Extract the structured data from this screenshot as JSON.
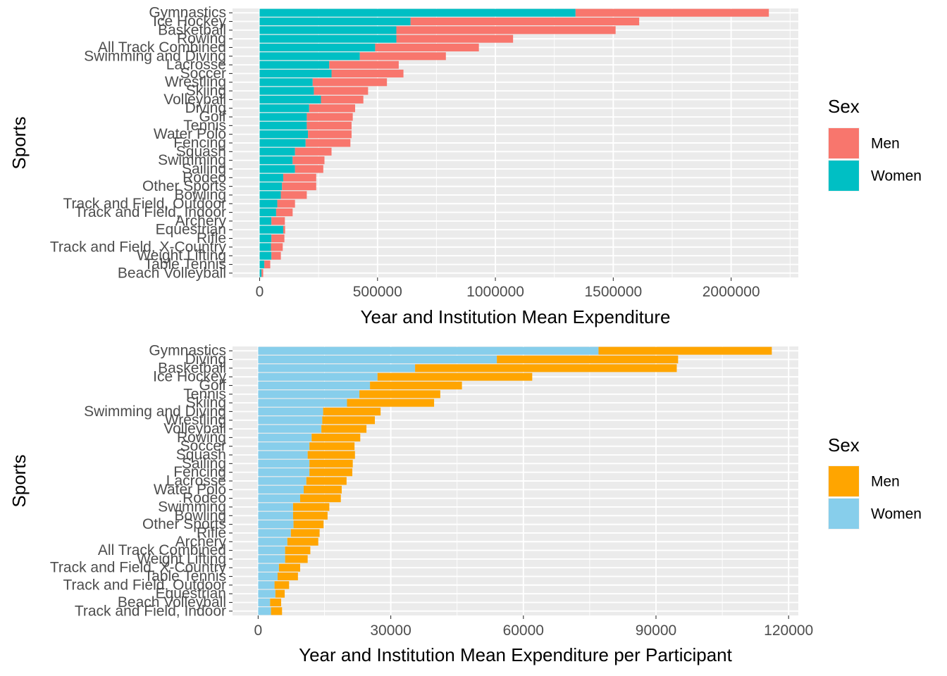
{
  "charts": [
    {
      "chart_data": {
        "type": "bar",
        "orientation": "horizontal",
        "stacked": true,
        "xlabel": "Year and Institution Mean Expenditure",
        "ylabel": "Sports",
        "xlim": [
          -115000,
          2285000
        ],
        "xticks": [
          0,
          500000,
          1000000,
          1500000,
          2000000
        ],
        "xtick_labels": [
          "0",
          "500000",
          "1000000",
          "1500000",
          "2000000"
        ],
        "grid": true,
        "legend": {
          "title": "Sex",
          "position": "right"
        },
        "categories": [
          "Gymnastics",
          "Ice Hockey",
          "Basketball",
          "Rowing",
          "All Track Combined",
          "Swimming and Diving",
          "Lacrosse",
          "Soccer",
          "Wrestling",
          "Skiing",
          "Volleyball",
          "Diving",
          "Golf",
          "Tennis",
          "Water Polo",
          "Fencing",
          "Squash",
          "Swimming",
          "Sailing",
          "Rodeo",
          "Other Sports",
          "Bowling",
          "Track and Field, Outdoor",
          "Track and Field, Indoor",
          "Archery",
          "Equestrian",
          "Rifle",
          "Track and Field, X-Country",
          "Weight Lifting",
          "Table Tennis",
          "Beach Volleyball"
        ],
        "series": [
          {
            "name": "Men",
            "color": "#F8766D",
            "values": [
              820000,
              970000,
              930000,
              495000,
              440000,
              365000,
              295000,
              305000,
              315000,
              230000,
              180000,
              195000,
              195000,
              190000,
              185000,
              190000,
              155000,
              135000,
              120000,
              140000,
              145000,
              110000,
              75000,
              70000,
              57000,
              8000,
              55000,
              50000,
              40000,
              25000,
              7000
            ]
          },
          {
            "name": "Women",
            "color": "#00BFC4",
            "values": [
              1340000,
              640000,
              580000,
              580000,
              490000,
              425000,
              295000,
              305000,
              225000,
              230000,
              260000,
              210000,
              200000,
              200000,
              205000,
              195000,
              150000,
              140000,
              150000,
              100000,
              95000,
              90000,
              75000,
              70000,
              50000,
              100000,
              50000,
              48000,
              50000,
              20000,
              8000
            ]
          }
        ]
      }
    },
    {
      "chart_data": {
        "type": "bar",
        "orientation": "horizontal",
        "stacked": true,
        "xlabel": "Year and Institution Mean Expenditure per Participant",
        "ylabel": "Sports",
        "xlim": [
          -5800,
          122200
        ],
        "xticks": [
          0,
          30000,
          60000,
          90000,
          120000
        ],
        "xtick_labels": [
          "0",
          "30000",
          "60000",
          "90000",
          "120000"
        ],
        "grid": true,
        "legend": {
          "title": "Sex",
          "position": "right"
        },
        "categories": [
          "Gymnastics",
          "Diving",
          "Basketball",
          "Ice Hockey",
          "Golf",
          "Tennis",
          "Skiing",
          "Swimming and Diving",
          "Wrestling",
          "Volleyball",
          "Rowing",
          "Soccer",
          "Squash",
          "Sailing",
          "Fencing",
          "Lacrosse",
          "Water Polo",
          "Rodeo",
          "Swimming",
          "Bowling",
          "Other Sports",
          "Rifle",
          "Archery",
          "All Track Combined",
          "Weight Lifting",
          "Track and Field, X-Country",
          "Table Tennis",
          "Track and Field, Outdoor",
          "Equestrian",
          "Beach Volleyball",
          "Track and Field, Indoor"
        ],
        "series": [
          {
            "name": "Men",
            "color": "#FFA500",
            "values": [
              39200,
              41000,
              59200,
              35000,
              20800,
              18300,
              19700,
              13000,
              11900,
              10200,
              11000,
              10200,
              10700,
              9800,
              9700,
              9100,
              8600,
              9200,
              8200,
              7800,
              6800,
              6500,
              7000,
              5700,
              5100,
              4800,
              4600,
              3300,
              2100,
              2500,
              2500
            ]
          },
          {
            "name": "Women",
            "color": "#87CEEB",
            "values": [
              77000,
              54000,
              35500,
              27000,
              25300,
              22900,
              20100,
              14700,
              14500,
              14300,
              12100,
              11600,
              11200,
              11600,
              11600,
              10900,
              10300,
              9500,
              7900,
              7900,
              8000,
              7400,
              6600,
              6100,
              6100,
              4700,
              4400,
              3700,
              3900,
              2700,
              2900
            ]
          }
        ]
      }
    }
  ]
}
